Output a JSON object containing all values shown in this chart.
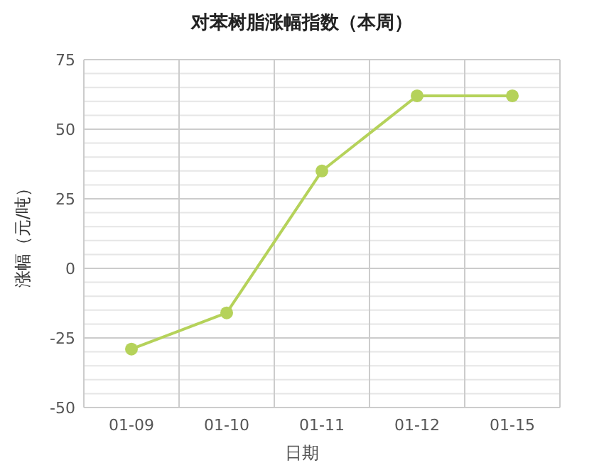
{
  "chart_data": {
    "type": "line",
    "title": "对苯树脂涨幅指数（本周）",
    "xlabel": "日期",
    "ylabel": "涨幅（元/吨）",
    "categories": [
      "01-09",
      "01-10",
      "01-11",
      "01-12",
      "01-15"
    ],
    "series": [
      {
        "color": "#b5d25a",
        "values": [
          -29,
          -16,
          35,
          62,
          62
        ]
      }
    ],
    "ylim": [
      -50,
      75
    ],
    "yticks": [
      -50,
      {
        "value": -45,
        "label": null
      },
      {
        "value": -40,
        "label": null
      },
      {
        "value": -35,
        "label": null
      },
      {
        "value": -30,
        "label": null
      },
      -25,
      {
        "value": -20,
        "label": null
      },
      {
        "value": -15,
        "label": null
      },
      {
        "value": -10,
        "label": null
      },
      {
        "value": -5,
        "label": null
      },
      0,
      {
        "value": 5,
        "label": null
      },
      {
        "value": 10,
        "label": null
      },
      {
        "value": 15,
        "label": null
      },
      {
        "value": 20,
        "label": null
      },
      25,
      {
        "value": 30,
        "label": null
      },
      {
        "value": 35,
        "label": null
      },
      {
        "value": 40,
        "label": null
      },
      {
        "value": 45,
        "label": null
      },
      50,
      {
        "value": 55,
        "label": null
      },
      {
        "value": 60,
        "label": null
      },
      {
        "value": 65,
        "label": null
      },
      {
        "value": 70,
        "label": null
      },
      75
    ],
    "grid": true,
    "marker": "circle",
    "line_style": "solid"
  }
}
